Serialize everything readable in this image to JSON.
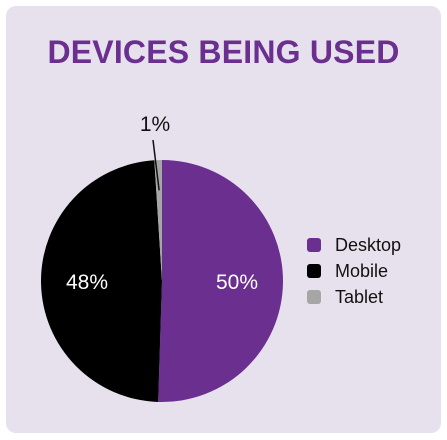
{
  "chart_data": {
    "type": "pie",
    "title": "DEVICES BEING USED",
    "categories": [
      "Desktop",
      "Mobile",
      "Tablet"
    ],
    "values": [
      50,
      48,
      1
    ],
    "labels": [
      "50%",
      "48%",
      "1%"
    ],
    "colors": [
      "#6a2f8f",
      "#000000",
      "#a6a6a6"
    ],
    "legend": "right"
  }
}
